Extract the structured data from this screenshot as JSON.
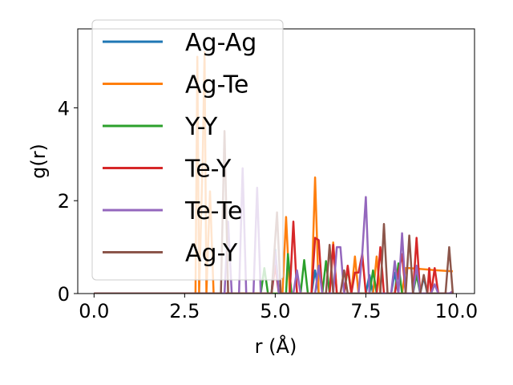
{
  "chart_data": {
    "type": "line",
    "title": "",
    "xlabel": "r (Å)",
    "ylabel": "g(r)",
    "xlim": [
      -0.45,
      10.5
    ],
    "ylim": [
      0,
      5.7
    ],
    "xticks": [
      0.0,
      2.5,
      5.0,
      7.5,
      10.0
    ],
    "xtick_labels": [
      "0.0",
      "2.5",
      "5.0",
      "7.5",
      "10.0"
    ],
    "yticks": [
      0,
      2,
      4
    ],
    "ytick_labels": [
      "0",
      "2",
      "4"
    ],
    "grid": false,
    "legend_position": "upper-left",
    "series": [
      {
        "name": "Ag-Ag",
        "color": "#1f77b4",
        "points": [
          [
            0.0,
            0
          ],
          [
            4.9,
            0
          ],
          [
            5.0,
            0.95
          ],
          [
            5.1,
            0
          ],
          [
            6.0,
            0
          ],
          [
            6.1,
            0.5
          ],
          [
            6.2,
            0
          ],
          [
            7.5,
            0
          ],
          [
            7.6,
            0.4
          ],
          [
            7.7,
            0
          ],
          [
            8.2,
            0
          ],
          [
            8.3,
            0.45
          ],
          [
            8.4,
            0
          ],
          [
            9.0,
            0
          ],
          [
            9.1,
            0.35
          ],
          [
            9.2,
            0
          ],
          [
            9.9,
            0
          ]
        ]
      },
      {
        "name": "Ag-Te",
        "color": "#ff7f0e",
        "points": [
          [
            0.0,
            0
          ],
          [
            2.8,
            0
          ],
          [
            2.85,
            5.1
          ],
          [
            2.9,
            0
          ],
          [
            3.0,
            3.0
          ],
          [
            3.05,
            5.2
          ],
          [
            3.1,
            0
          ],
          [
            3.2,
            2.2
          ],
          [
            3.3,
            0
          ],
          [
            5.2,
            0
          ],
          [
            5.3,
            1.65
          ],
          [
            5.4,
            0
          ],
          [
            6.0,
            0
          ],
          [
            6.1,
            2.5
          ],
          [
            6.2,
            0
          ],
          [
            6.5,
            0
          ],
          [
            6.6,
            1.1
          ],
          [
            6.7,
            0
          ],
          [
            7.1,
            0
          ],
          [
            7.2,
            0.8
          ],
          [
            7.3,
            0
          ],
          [
            7.7,
            0
          ],
          [
            7.8,
            0.8
          ],
          [
            7.9,
            0
          ],
          [
            8.5,
            0
          ],
          [
            8.6,
            0.55
          ],
          [
            8.7,
            0.55
          ],
          [
            9.5,
            0.5
          ],
          [
            9.9,
            0.48
          ]
        ]
      },
      {
        "name": "Y-Y",
        "color": "#2ca02c",
        "points": [
          [
            0.0,
            0
          ],
          [
            4.6,
            0
          ],
          [
            4.7,
            0.55
          ],
          [
            4.8,
            0
          ],
          [
            5.3,
            0
          ],
          [
            5.35,
            0.85
          ],
          [
            5.45,
            0
          ],
          [
            5.7,
            0
          ],
          [
            5.8,
            0.72
          ],
          [
            5.9,
            0
          ],
          [
            6.3,
            0
          ],
          [
            6.4,
            0.7
          ],
          [
            6.5,
            0
          ],
          [
            6.9,
            0
          ],
          [
            7.0,
            0.55
          ],
          [
            7.1,
            0
          ],
          [
            7.6,
            0
          ],
          [
            7.7,
            0.5
          ],
          [
            7.8,
            0
          ],
          [
            8.3,
            0
          ],
          [
            8.4,
            0.65
          ],
          [
            8.5,
            0
          ],
          [
            8.8,
            0
          ],
          [
            8.9,
            0.4
          ],
          [
            9.0,
            0
          ],
          [
            9.9,
            0
          ]
        ]
      },
      {
        "name": "Te-Y",
        "color": "#d62728",
        "points": [
          [
            0.0,
            0
          ],
          [
            4.9,
            0
          ],
          [
            5.0,
            0.6
          ],
          [
            5.1,
            0
          ],
          [
            5.4,
            0
          ],
          [
            5.5,
            1.55
          ],
          [
            5.6,
            0
          ],
          [
            6.0,
            0
          ],
          [
            6.1,
            1.2
          ],
          [
            6.2,
            1.15
          ],
          [
            6.3,
            0
          ],
          [
            6.5,
            0
          ],
          [
            6.6,
            1.05
          ],
          [
            6.7,
            0
          ],
          [
            6.9,
            0
          ],
          [
            7.0,
            0.6
          ],
          [
            7.1,
            0
          ],
          [
            7.2,
            0.45
          ],
          [
            7.3,
            0.45
          ],
          [
            7.4,
            0.85
          ],
          [
            7.5,
            0
          ],
          [
            7.8,
            0
          ],
          [
            7.9,
            1.0
          ],
          [
            8.0,
            0
          ],
          [
            8.3,
            0
          ],
          [
            8.4,
            0.45
          ],
          [
            8.5,
            0.85
          ],
          [
            8.6,
            0
          ],
          [
            8.8,
            0
          ],
          [
            8.9,
            1.2
          ],
          [
            9.0,
            0
          ],
          [
            9.2,
            0
          ],
          [
            9.25,
            0.55
          ],
          [
            9.3,
            0
          ],
          [
            9.4,
            0.55
          ],
          [
            9.5,
            0
          ],
          [
            9.9,
            0
          ]
        ]
      },
      {
        "name": "Te-Te",
        "color": "#9467bd",
        "points": [
          [
            0.0,
            0
          ],
          [
            3.6,
            0
          ],
          [
            3.7,
            1.55
          ],
          [
            3.8,
            0
          ],
          [
            4.0,
            0
          ],
          [
            4.1,
            2.7
          ],
          [
            4.2,
            0
          ],
          [
            4.4,
            0
          ],
          [
            4.5,
            2.28
          ],
          [
            4.6,
            0
          ],
          [
            4.9,
            0
          ],
          [
            5.0,
            0.9
          ],
          [
            5.1,
            0
          ],
          [
            5.5,
            0
          ],
          [
            5.6,
            0.5
          ],
          [
            5.7,
            0
          ],
          [
            6.1,
            0
          ],
          [
            6.2,
            0.6
          ],
          [
            6.3,
            0
          ],
          [
            6.6,
            0
          ],
          [
            6.7,
            1.0
          ],
          [
            6.8,
            1.0
          ],
          [
            6.9,
            0
          ],
          [
            7.3,
            0
          ],
          [
            7.4,
            0.85
          ],
          [
            7.5,
            2.08
          ],
          [
            7.6,
            0
          ],
          [
            8.2,
            0
          ],
          [
            8.3,
            0.7
          ],
          [
            8.4,
            0
          ],
          [
            8.5,
            1.3
          ],
          [
            8.6,
            0
          ],
          [
            8.8,
            0
          ],
          [
            8.9,
            0.6
          ],
          [
            9.0,
            0
          ],
          [
            9.3,
            0
          ],
          [
            9.4,
            0.2
          ],
          [
            9.5,
            0
          ],
          [
            9.8,
            0
          ],
          [
            9.9,
            0.05
          ]
        ]
      },
      {
        "name": "Ag-Y",
        "color": "#8c564b",
        "points": [
          [
            0.0,
            0
          ],
          [
            3.5,
            0
          ],
          [
            3.6,
            3.5
          ],
          [
            3.7,
            0
          ],
          [
            4.9,
            0
          ],
          [
            5.05,
            1.75
          ],
          [
            5.15,
            0
          ],
          [
            6.4,
            0
          ],
          [
            6.5,
            1.05
          ],
          [
            6.6,
            0
          ],
          [
            6.8,
            0
          ],
          [
            6.9,
            0.5
          ],
          [
            7.0,
            0
          ],
          [
            7.9,
            0
          ],
          [
            8.0,
            1.5
          ],
          [
            8.1,
            0
          ],
          [
            8.6,
            0
          ],
          [
            8.7,
            1.25
          ],
          [
            8.8,
            0
          ],
          [
            9.0,
            0
          ],
          [
            9.1,
            0.4
          ],
          [
            9.2,
            0
          ],
          [
            9.7,
            0
          ],
          [
            9.8,
            1.0
          ],
          [
            9.9,
            0
          ]
        ]
      }
    ]
  }
}
